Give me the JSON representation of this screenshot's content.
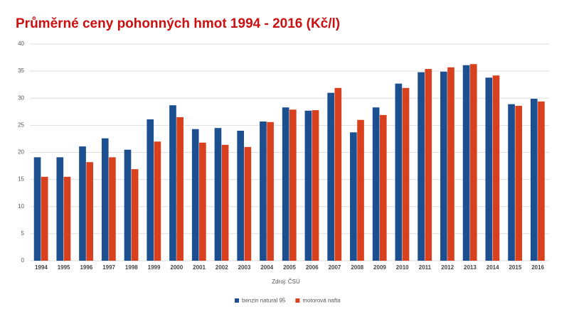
{
  "chart_data": {
    "type": "bar",
    "title": "Průměrné ceny pohonných hmot 1994 - 2016  (Kč/l)",
    "source": "Zdroj: ČSÚ",
    "categories": [
      "1994",
      "1995",
      "1996",
      "1997",
      "1998",
      "1999",
      "2000",
      "2001",
      "2002",
      "2003",
      "2004",
      "2005",
      "2006",
      "2007",
      "2008",
      "2009",
      "2010",
      "2011",
      "2012",
      "2013",
      "2014",
      "2015",
      "2016"
    ],
    "series": [
      {
        "name": "benzin natural 95",
        "color": "#1b4f8f",
        "values": [
          19.1,
          19.1,
          21.1,
          22.6,
          20.5,
          26.1,
          28.7,
          24.3,
          24.5,
          24.0,
          25.7,
          28.3,
          27.7,
          31.0,
          23.7,
          28.3,
          32.7,
          34.8,
          34.9,
          36.1,
          33.8,
          28.9,
          29.9
        ]
      },
      {
        "name": "motorová nafta",
        "color": "#d9411e",
        "values": [
          15.5,
          15.5,
          18.2,
          19.1,
          16.9,
          22.0,
          26.5,
          21.8,
          21.4,
          21.0,
          25.6,
          27.9,
          27.8,
          31.9,
          26.0,
          26.9,
          31.9,
          35.4,
          35.7,
          36.3,
          34.2,
          28.6,
          29.4
        ]
      }
    ],
    "ylim": [
      0,
      40
    ],
    "yticks": [
      0,
      5,
      10,
      15,
      20,
      25,
      30,
      35,
      40
    ],
    "grid": true,
    "legend": "bottom"
  }
}
